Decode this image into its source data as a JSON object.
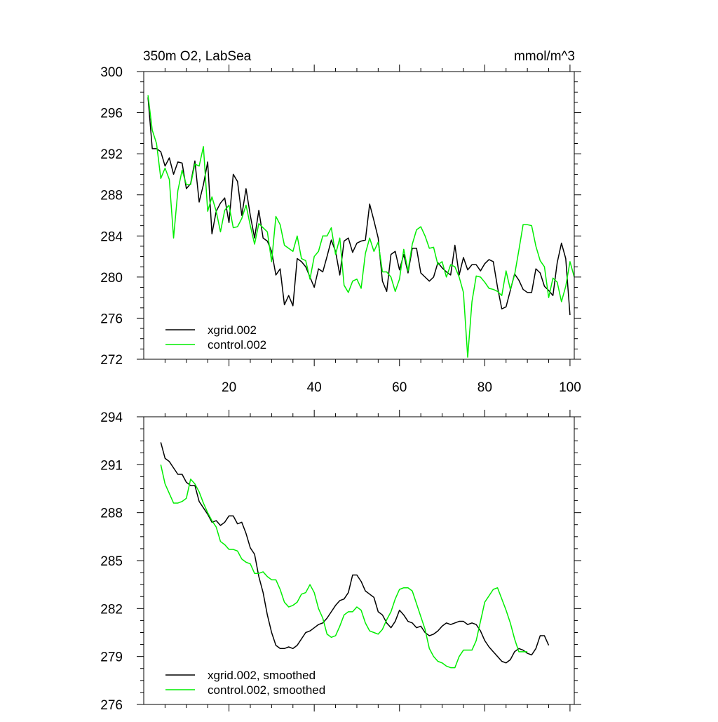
{
  "chart_data": [
    {
      "type": "line",
      "title_left": "350m O2, LabSea",
      "title_right": "mmol/m^3",
      "xlim": [
        0,
        101
      ],
      "ylim": [
        272,
        300
      ],
      "xticks": [
        20,
        40,
        60,
        80,
        100
      ],
      "yticks": [
        272,
        276,
        280,
        284,
        288,
        292,
        296,
        300
      ],
      "legend": [
        "xgrid.002",
        "control.002"
      ],
      "legend_placement": "bottom-left",
      "series": [
        {
          "name": "xgrid.002",
          "color": "#000000",
          "x_start": 1,
          "values": [
            297.5,
            292.5,
            292.5,
            292.2,
            290.8,
            291.6,
            290.0,
            291.2,
            291.1,
            288.6,
            289.1,
            291.3,
            287.3,
            289.0,
            291.2,
            284.2,
            286.4,
            287.2,
            287.7,
            285.3,
            290.0,
            289.3,
            286.0,
            288.6,
            286.0,
            283.8,
            286.5,
            283.8,
            283.5,
            282.5,
            280.2,
            280.8,
            277.3,
            278.2,
            277.2,
            281.8,
            281.5,
            281.0,
            280.0,
            279.0,
            280.8,
            280.5,
            282.0,
            283.6,
            282.5,
            280.2,
            283.5,
            283.8,
            282.4,
            283.3,
            283.5,
            283.6,
            287.1,
            285.5,
            283.8,
            279.6,
            278.6,
            282.2,
            282.5,
            280.7,
            282.2,
            280.4,
            282.8,
            282.8,
            280.4,
            280.0,
            279.6,
            280.0,
            281.4,
            280.9,
            280.5,
            280.2,
            283.1,
            280.2,
            281.9,
            280.7,
            281.2,
            281.2,
            280.6,
            281.3,
            281.7,
            281.5,
            279.0,
            276.9,
            277.1,
            278.7,
            280.3,
            279.7,
            278.8,
            278.5,
            278.5,
            280.8,
            280.4,
            279.1,
            278.7,
            278.2,
            281.4,
            283.3,
            281.8,
            276.3
          ]
        },
        {
          "name": "control.002",
          "color": "#00ee00",
          "x_start": 1,
          "values": [
            297.7,
            294.3,
            293.0,
            289.6,
            290.6,
            289.5,
            283.8,
            288.4,
            290.4,
            289.0,
            289.0,
            291.0,
            290.8,
            292.7,
            286.4,
            287.8,
            286.4,
            284.4,
            286.5,
            287.0,
            284.8,
            284.9,
            285.7,
            287.0,
            285.0,
            283.2,
            285.2,
            284.8,
            284.4,
            281.5,
            285.9,
            285.1,
            283.1,
            282.8,
            282.5,
            284.0,
            281.8,
            281.6,
            279.8,
            282.0,
            282.5,
            284.0,
            284.0,
            284.8,
            282.2,
            283.8,
            279.2,
            278.5,
            279.6,
            279.8,
            278.9,
            282.3,
            283.8,
            282.5,
            283.4,
            280.5,
            280.5,
            280.0,
            278.6,
            279.8,
            282.7,
            280.6,
            283.2,
            284.6,
            284.9,
            284.0,
            282.8,
            282.9,
            281.2,
            281.5,
            280.0,
            281.2,
            281.0,
            280.0,
            278.5,
            272.2,
            277.6,
            280.1,
            280.0,
            279.5,
            278.9,
            278.8,
            278.6,
            278.2,
            280.6,
            278.8,
            280.2,
            282.6,
            285.1,
            285.1,
            285.0,
            283.0,
            281.6,
            281.0,
            278.0,
            279.9,
            279.5,
            277.6,
            279.1,
            281.5,
            280.0
          ]
        }
      ]
    },
    {
      "type": "line",
      "xlim": [
        0,
        101
      ],
      "ylim": [
        276,
        294
      ],
      "xticks": [
        20,
        40,
        60,
        80,
        100
      ],
      "yticks": [
        276,
        279,
        282,
        285,
        288,
        291,
        294
      ],
      "legend": [
        "xgrid.002, smoothed",
        "control.002, smoothed"
      ],
      "legend_placement": "bottom-left",
      "series": [
        {
          "name": "xgrid.002, smoothed",
          "color": "#000000",
          "x_start": 4,
          "values": [
            292.4,
            291.4,
            291.2,
            290.8,
            290.4,
            290.4,
            289.9,
            289.7,
            289.7,
            288.7,
            288.3,
            287.9,
            287.4,
            287.5,
            287.2,
            287.4,
            287.8,
            287.8,
            287.3,
            287.4,
            286.7,
            285.8,
            285.4,
            284.0,
            283.0,
            281.6,
            280.5,
            279.7,
            279.5,
            279.5,
            279.6,
            279.5,
            279.7,
            280.1,
            280.5,
            280.6,
            280.8,
            281.0,
            281.1,
            281.4,
            281.8,
            282.2,
            282.5,
            282.6,
            283.0,
            284.1,
            284.1,
            283.7,
            283.1,
            282.9,
            282.7,
            281.8,
            281.6,
            281.1,
            280.8,
            281.2,
            281.9,
            281.6,
            281.2,
            281.1,
            280.8,
            280.9,
            280.5,
            280.3,
            280.4,
            280.6,
            280.9,
            281.1,
            281.0,
            281.1,
            281.2,
            281.2,
            281.0,
            281.1,
            281.0,
            280.6,
            280.0,
            279.6,
            279.3,
            279.0,
            278.7,
            278.6,
            278.8,
            279.3,
            279.5,
            279.4,
            279.2,
            279.1,
            279.5,
            280.3,
            280.3,
            279.7
          ]
        },
        {
          "name": "control.002, smoothed",
          "color": "#00ee00",
          "x_start": 4,
          "values": [
            291.0,
            289.8,
            289.2,
            288.6,
            288.6,
            288.7,
            288.9,
            290.1,
            289.8,
            289.3,
            288.6,
            288.0,
            287.5,
            287.1,
            286.2,
            286.0,
            285.7,
            285.7,
            285.6,
            285.1,
            284.9,
            284.8,
            284.2,
            284.2,
            284.3,
            284.0,
            283.8,
            283.8,
            283.2,
            282.4,
            282.1,
            282.2,
            282.4,
            282.9,
            283.0,
            283.5,
            283.0,
            282.0,
            281.4,
            280.4,
            280.2,
            280.3,
            280.9,
            281.6,
            281.8,
            281.8,
            282.1,
            281.9,
            281.1,
            280.6,
            280.5,
            280.4,
            280.7,
            281.3,
            281.8,
            282.6,
            283.2,
            283.3,
            283.3,
            283.1,
            282.3,
            281.5,
            280.7,
            279.5,
            279.0,
            278.7,
            278.6,
            278.4,
            278.3,
            278.3,
            279.0,
            279.4,
            279.4,
            279.4,
            280.0,
            281.2,
            282.4,
            282.8,
            283.2,
            283.3,
            282.6,
            281.9,
            281.1,
            280.1,
            279.3,
            279.3,
            279.3
          ]
        }
      ]
    }
  ]
}
